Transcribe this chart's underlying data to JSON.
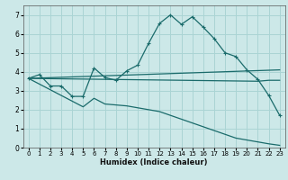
{
  "xlabel": "Humidex (Indice chaleur)",
  "bg_color": "#cce8e8",
  "grid_color": "#aad4d4",
  "line_color": "#1a6b6b",
  "xlim": [
    -0.5,
    23.5
  ],
  "ylim": [
    0,
    7.5
  ],
  "xticks": [
    0,
    1,
    2,
    3,
    4,
    5,
    6,
    7,
    8,
    9,
    10,
    11,
    12,
    13,
    14,
    15,
    16,
    17,
    18,
    19,
    20,
    21,
    22,
    23
  ],
  "yticks": [
    0,
    1,
    2,
    3,
    4,
    5,
    6,
    7
  ],
  "series1_x": [
    0,
    1,
    2,
    3,
    4,
    5,
    6,
    7,
    8,
    9,
    10,
    11,
    12,
    13,
    14,
    15,
    16,
    17,
    18,
    19,
    20,
    21,
    22,
    23
  ],
  "series1_y": [
    3.65,
    3.85,
    3.25,
    3.25,
    2.7,
    2.7,
    4.2,
    3.7,
    3.55,
    4.05,
    4.35,
    5.5,
    6.55,
    7.0,
    6.5,
    6.9,
    6.35,
    5.75,
    5.0,
    4.8,
    4.1,
    3.6,
    2.75,
    1.7
  ],
  "series2_x": [
    0,
    23
  ],
  "series2_y": [
    3.65,
    4.1
  ],
  "series3_x": [
    0,
    21,
    22,
    23
  ],
  "series3_y": [
    3.65,
    3.5,
    3.55,
    3.55
  ],
  "series4_x": [
    0,
    5,
    6,
    7,
    8,
    9,
    10,
    11,
    12,
    13,
    14,
    15,
    16,
    17,
    18,
    19,
    20,
    21,
    22,
    23
  ],
  "series4_y": [
    3.65,
    2.15,
    2.6,
    2.3,
    2.25,
    2.2,
    2.1,
    2.0,
    1.9,
    1.7,
    1.5,
    1.3,
    1.1,
    0.9,
    0.7,
    0.5,
    0.4,
    0.3,
    0.2,
    0.12
  ]
}
